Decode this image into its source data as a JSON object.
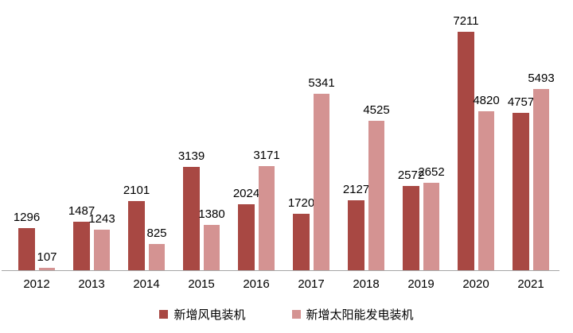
{
  "chart_data": {
    "type": "bar",
    "categories": [
      "2012",
      "2013",
      "2014",
      "2015",
      "2016",
      "2017",
      "2018",
      "2019",
      "2020",
      "2021"
    ],
    "series": [
      {
        "name": "新增风电装机",
        "slug": "wind",
        "color": "#a84843",
        "values": [
          1296,
          1487,
          2101,
          3139,
          2024,
          1720,
          2127,
          2572,
          7211,
          4757
        ]
      },
      {
        "name": "新增太阳能发电装机",
        "slug": "solar",
        "color": "#d49392",
        "values": [
          107,
          1243,
          825,
          1380,
          3171,
          5341,
          4525,
          2652,
          4820,
          5493
        ]
      }
    ],
    "title": "",
    "xlabel": "",
    "ylabel": "",
    "value_labels": true,
    "grid": false,
    "y_axis_visible": false,
    "legend_position": "bottom",
    "axis_line_color": "#a6a6a6",
    "text_color": "#000000",
    "ylim": [
      0,
      7700
    ]
  }
}
